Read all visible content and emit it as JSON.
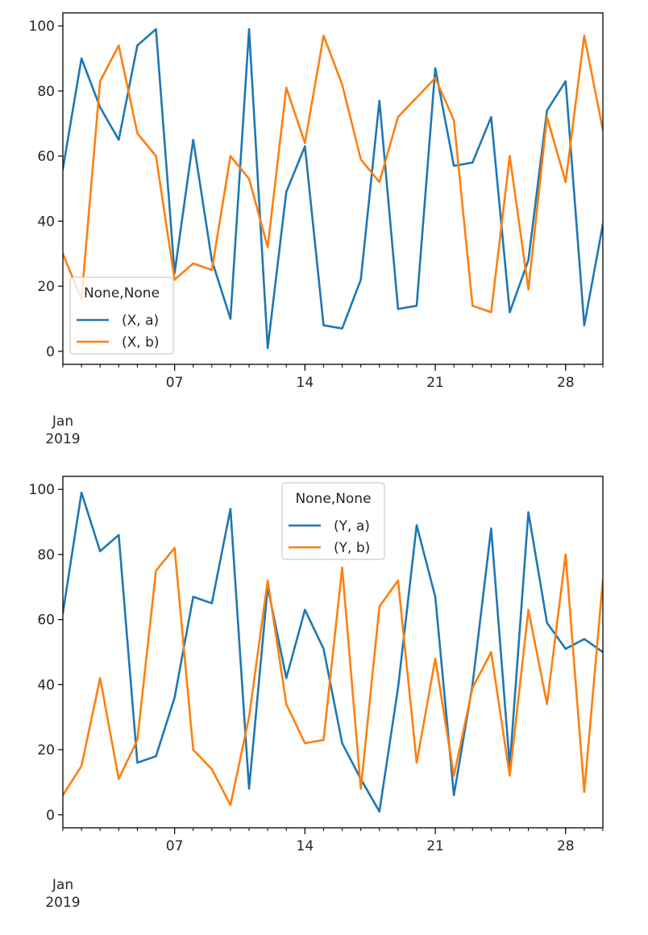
{
  "colors": {
    "series_a": "#1f77b4",
    "series_b": "#ff7f0e",
    "axes": "#000000",
    "text": "#262626",
    "legend_border": "#cccccc"
  },
  "chart_data": [
    {
      "type": "line",
      "title": "",
      "xlabel": "",
      "ylabel": "",
      "x": [
        "2019-01-01",
        "2019-01-02",
        "2019-01-03",
        "2019-01-04",
        "2019-01-05",
        "2019-01-06",
        "2019-01-07",
        "2019-01-08",
        "2019-01-09",
        "2019-01-10",
        "2019-01-11",
        "2019-01-12",
        "2019-01-13",
        "2019-01-14",
        "2019-01-15",
        "2019-01-16",
        "2019-01-17",
        "2019-01-18",
        "2019-01-19",
        "2019-01-20",
        "2019-01-21",
        "2019-01-22",
        "2019-01-23",
        "2019-01-24",
        "2019-01-25",
        "2019-01-26",
        "2019-01-27",
        "2019-01-28",
        "2019-01-29",
        "2019-01-30"
      ],
      "xlim": [
        "2019-01-01",
        "2019-01-30"
      ],
      "ylim": [
        -4,
        104
      ],
      "yticks": [
        0,
        20,
        40,
        60,
        80,
        100
      ],
      "xtick_labels": [
        "07",
        "14",
        "21",
        "28"
      ],
      "xtick_dates": [
        "2019-01-07",
        "2019-01-14",
        "2019-01-21",
        "2019-01-28"
      ],
      "xaxis_secondary_label_month": "Jan",
      "xaxis_secondary_label_year": "2019",
      "legend": {
        "title": "None,None",
        "position": "lower-left"
      },
      "series": [
        {
          "name": "(X, a)",
          "color": "#1f77b4",
          "values": [
            56,
            90,
            75,
            65,
            94,
            99,
            24,
            65,
            28,
            10,
            99,
            1,
            49,
            63,
            8,
            7,
            22,
            77,
            13,
            14,
            87,
            57,
            58,
            72,
            12,
            28,
            74,
            83,
            8,
            39
          ]
        },
        {
          "name": "(X, b)",
          "color": "#ff7f0e",
          "values": [
            30,
            16,
            83,
            94,
            67,
            60,
            22,
            27,
            25,
            60,
            53,
            32,
            81,
            64,
            97,
            82,
            59,
            52,
            72,
            78,
            84,
            71,
            14,
            12,
            60,
            19,
            72,
            52,
            97,
            68
          ]
        }
      ]
    },
    {
      "type": "line",
      "title": "",
      "xlabel": "",
      "ylabel": "",
      "x": [
        "2019-01-01",
        "2019-01-02",
        "2019-01-03",
        "2019-01-04",
        "2019-01-05",
        "2019-01-06",
        "2019-01-07",
        "2019-01-08",
        "2019-01-09",
        "2019-01-10",
        "2019-01-11",
        "2019-01-12",
        "2019-01-13",
        "2019-01-14",
        "2019-01-15",
        "2019-01-16",
        "2019-01-17",
        "2019-01-18",
        "2019-01-19",
        "2019-01-20",
        "2019-01-21",
        "2019-01-22",
        "2019-01-23",
        "2019-01-24",
        "2019-01-25",
        "2019-01-26",
        "2019-01-27",
        "2019-01-28",
        "2019-01-29",
        "2019-01-30"
      ],
      "xlim": [
        "2019-01-01",
        "2019-01-30"
      ],
      "ylim": [
        -4,
        104
      ],
      "yticks": [
        0,
        20,
        40,
        60,
        80,
        100
      ],
      "xtick_labels": [
        "07",
        "14",
        "21",
        "28"
      ],
      "xtick_dates": [
        "2019-01-07",
        "2019-01-14",
        "2019-01-21",
        "2019-01-28"
      ],
      "xaxis_secondary_label_month": "Jan",
      "xaxis_secondary_label_year": "2019",
      "legend": {
        "title": "None,None",
        "position": "upper-center"
      },
      "series": [
        {
          "name": "(Y, a)",
          "color": "#1f77b4",
          "values": [
            62,
            99,
            81,
            86,
            16,
            18,
            36,
            67,
            65,
            94,
            8,
            70,
            42,
            63,
            51,
            22,
            11,
            1,
            39,
            89,
            67,
            6,
            40,
            88,
            15,
            93,
            59,
            51,
            54,
            50
          ]
        },
        {
          "name": "(Y, b)",
          "color": "#ff7f0e",
          "values": [
            6,
            15,
            42,
            11,
            23,
            75,
            82,
            20,
            14,
            3,
            30,
            72,
            34,
            22,
            23,
            76,
            8,
            64,
            72,
            16,
            48,
            12,
            39,
            50,
            12,
            63,
            34,
            80,
            7,
            72
          ]
        }
      ]
    }
  ]
}
